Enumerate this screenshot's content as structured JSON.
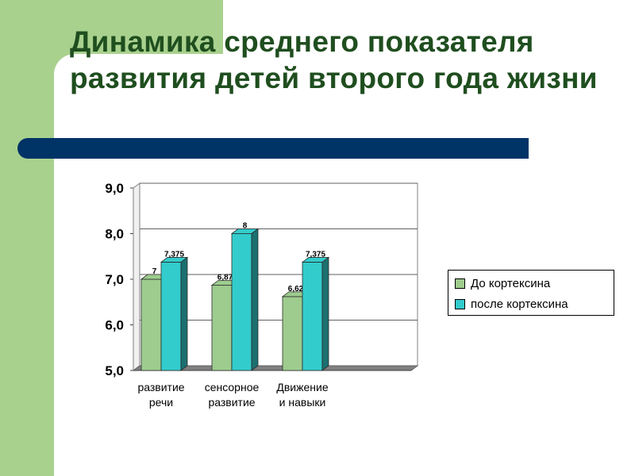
{
  "title": "Динамика среднего показателя развития детей второго года жизни",
  "colors": {
    "green_band": "#a9d18e",
    "title_bar": "#003366",
    "title_text": "#1f4e1f"
  },
  "chart_data": {
    "type": "bar",
    "categories": [
      "развитие речи",
      "сенсорное развитие",
      "Движение и навыки"
    ],
    "category_lines": [
      [
        "развитие",
        "речи"
      ],
      [
        "сенсорное",
        "развитие"
      ],
      [
        "Движение",
        "и навыки"
      ]
    ],
    "series": [
      {
        "name": "До кортексина",
        "values": [
          7,
          6.87,
          6.62
        ],
        "labels": [
          "7",
          "6,87",
          "6,62"
        ],
        "color": "#9dcc8e"
      },
      {
        "name": "после кортексина",
        "values": [
          7.375,
          8,
          7.375
        ],
        "labels": [
          "7,375",
          "8",
          "7,375"
        ],
        "color": "#33cccc"
      }
    ],
    "y_ticks": [
      "5,0",
      "6,0",
      "7,0",
      "8,0",
      "9,0"
    ],
    "ylim": [
      5,
      9
    ],
    "grid": true,
    "legend_position": "right"
  }
}
